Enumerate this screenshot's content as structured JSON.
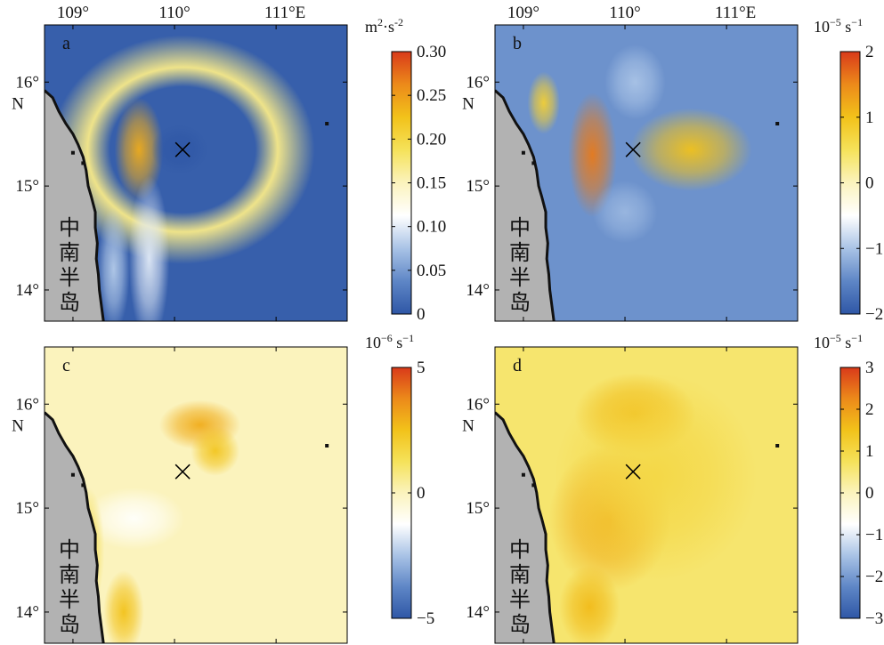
{
  "colors": {
    "land": "#b2b2b2",
    "coast": "#111111",
    "colormap": [
      "#2f57a6",
      "#5e86c6",
      "#a9c3e6",
      "#ffffff",
      "#fbf3bd",
      "#f5e25a",
      "#f2c21a",
      "#ec8a1a",
      "#d93a1a"
    ]
  },
  "map_labels": {
    "lon_ticks": [
      "109°",
      "110°",
      "111°E"
    ],
    "lat_ticks": [
      "16°",
      "15°",
      "14°"
    ],
    "lat_unit": "N",
    "land_label_chars": [
      "中",
      "南",
      "半",
      "岛"
    ],
    "center_marker": "×"
  },
  "chart_data": [
    {
      "type": "heatmap",
      "panel": "a",
      "colorbar": {
        "unit_base": "m",
        "unit_base_exp": "2",
        "unit_sep": "·s",
        "unit_exp": "-2",
        "min": 0,
        "max": 0.3,
        "tick_labels": [
          "0.30",
          "0.25",
          "0.20",
          "0.15",
          "0.10",
          "0.05",
          "0"
        ]
      },
      "show_lon_ticks": true,
      "fields": [
        {
          "lon": 110.08,
          "lat": 15.35,
          "sx": 0.65,
          "sy": 0.55,
          "v": 0.17,
          "shape": "ring"
        },
        {
          "lon": 109.65,
          "lat": 15.35,
          "sx": 0.12,
          "sy": 0.25,
          "v": 0.24
        },
        {
          "lon": 110.05,
          "lat": 15.35,
          "sx": 0.14,
          "sy": 0.12,
          "v": -0.03
        },
        {
          "lon": 109.75,
          "lat": 14.3,
          "sx": 0.1,
          "sy": 0.4,
          "v": 0.1
        },
        {
          "lon": 109.4,
          "lat": 14.2,
          "sx": 0.08,
          "sy": 0.3,
          "v": 0.08
        }
      ],
      "background": 0.02
    },
    {
      "type": "heatmap",
      "panel": "b",
      "colorbar": {
        "unit_base": "10",
        "unit_base_exp": "−5",
        "unit_sep": " s",
        "unit_exp": "−1",
        "min": -2,
        "max": 2,
        "tick_labels": [
          "2",
          "1",
          "0",
          "−1",
          "−2"
        ]
      },
      "show_lon_ticks": true,
      "fields": [
        {
          "lon": 109.68,
          "lat": 15.3,
          "sx": 0.12,
          "sy": 0.3,
          "v": 1.6
        },
        {
          "lon": 110.65,
          "lat": 15.35,
          "sx": 0.3,
          "sy": 0.2,
          "v": 1.0
        },
        {
          "lon": 110.1,
          "lat": 16.0,
          "sx": 0.15,
          "sy": 0.18,
          "v": -1.0
        },
        {
          "lon": 110.0,
          "lat": 14.75,
          "sx": 0.16,
          "sy": 0.15,
          "v": -1.1
        },
        {
          "lon": 109.2,
          "lat": 15.8,
          "sx": 0.08,
          "sy": 0.15,
          "v": 0.8
        }
      ],
      "background": 0.15
    },
    {
      "type": "heatmap",
      "panel": "c",
      "colorbar": {
        "unit_base": "10",
        "unit_base_exp": "−6",
        "unit_sep": " s",
        "unit_exp": "−1",
        "min": -5,
        "max": 5,
        "tick_labels": [
          "5",
          "0",
          "−5"
        ]
      },
      "show_lon_ticks": false,
      "fields": [
        {
          "lon": 110.25,
          "lat": 15.8,
          "sx": 0.2,
          "sy": 0.12,
          "v": 3.0
        },
        {
          "lon": 110.4,
          "lat": 15.55,
          "sx": 0.12,
          "sy": 0.12,
          "v": 2.4
        },
        {
          "lon": 109.6,
          "lat": 14.9,
          "sx": 0.25,
          "sy": 0.15,
          "v": -1.2
        },
        {
          "lon": 109.5,
          "lat": 14.0,
          "sx": 0.1,
          "sy": 0.2,
          "v": 2.5
        },
        {
          "lon": 109.15,
          "lat": 14.6,
          "sx": 0.08,
          "sy": 0.3,
          "v": 1.5
        }
      ],
      "background": 0.5
    },
    {
      "type": "heatmap",
      "panel": "d",
      "colorbar": {
        "unit_base": "10",
        "unit_base_exp": "−5",
        "unit_sep": " s",
        "unit_exp": "−1",
        "min": -3,
        "max": 3,
        "tick_labels": [
          "3",
          "2",
          "1",
          "0",
          "−1",
          "−2",
          "−3"
        ]
      },
      "show_lon_ticks": false,
      "fields": [
        {
          "lon": 110.1,
          "lat": 15.9,
          "sx": 0.3,
          "sy": 0.2,
          "v": 1.6
        },
        {
          "lon": 109.85,
          "lat": 14.9,
          "sx": 0.3,
          "sy": 0.35,
          "v": 1.8
        },
        {
          "lon": 109.65,
          "lat": 14.05,
          "sx": 0.15,
          "sy": 0.2,
          "v": 1.6
        },
        {
          "lon": 110.3,
          "lat": 15.3,
          "sx": 0.5,
          "sy": 0.5,
          "v": 1.0
        }
      ],
      "background": 0.6
    }
  ]
}
